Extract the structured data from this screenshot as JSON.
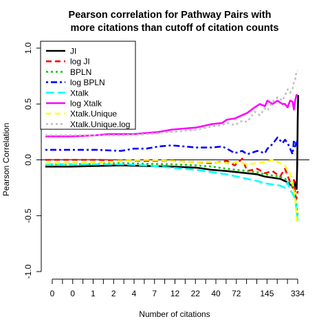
{
  "chart_data": {
    "type": "line",
    "title": [
      "Pearson correlation for Pathway Pairs with",
      "more citations than cutoff of citation counts"
    ],
    "xlabel": "Number of citations",
    "ylabel": "Pearson Correlation",
    "ylim": [
      -1.0,
      1.0
    ],
    "y_ticks": [
      -1.0,
      -0.5,
      0.0,
      0.5,
      1.0
    ],
    "y_tick_labels": [
      "-1.0",
      "-0.5",
      "0.0",
      "0.5",
      "1.0"
    ],
    "x_tick_count": 25,
    "x_tick_labels": [
      {
        "index": 0,
        "label": "0"
      },
      {
        "index": 2,
        "label": "0"
      },
      {
        "index": 4,
        "label": "1"
      },
      {
        "index": 6,
        "label": "2"
      },
      {
        "index": 8,
        "label": "4"
      },
      {
        "index": 10,
        "label": "7"
      },
      {
        "index": 12,
        "label": "12"
      },
      {
        "index": 14,
        "label": "22"
      },
      {
        "index": 16,
        "label": "40"
      },
      {
        "index": 18,
        "label": "72"
      },
      {
        "index": 21,
        "label": "145"
      },
      {
        "index": 24,
        "label": "334"
      }
    ],
    "reference_line_y": 0,
    "legend_position": "top-left",
    "series": [
      {
        "name": "JI",
        "color": "#000000",
        "dash": "solid",
        "width": 2.6,
        "points": [
          [
            0,
            -0.06
          ],
          [
            10,
            -0.06
          ],
          [
            20,
            -0.055
          ],
          [
            30,
            -0.05
          ],
          [
            40,
            -0.055
          ],
          [
            50,
            -0.06
          ],
          [
            60,
            -0.07
          ],
          [
            66,
            -0.09
          ],
          [
            72,
            -0.1
          ],
          [
            76,
            -0.11
          ],
          [
            80,
            -0.12
          ],
          [
            84,
            -0.13
          ],
          [
            87,
            -0.15
          ],
          [
            90,
            -0.16
          ],
          [
            93,
            -0.17
          ],
          [
            95,
            -0.19
          ],
          [
            96,
            -0.2
          ],
          [
            97,
            -0.22
          ],
          [
            98,
            -0.24
          ],
          [
            98.5,
            -0.18
          ],
          [
            99,
            -0.24
          ],
          [
            99.3,
            -0.2
          ],
          [
            99.6,
            -0.26
          ],
          [
            99.8,
            -0.05
          ],
          [
            100,
            0.35
          ],
          [
            100.2,
            0.58
          ]
        ]
      },
      {
        "name": "log JI",
        "color": "#ff0000",
        "dash": "dashed",
        "width": 2.6,
        "points": [
          [
            0,
            0.0
          ],
          [
            10,
            0.0
          ],
          [
            20,
            0.0
          ],
          [
            30,
            -0.005
          ],
          [
            40,
            -0.01
          ],
          [
            50,
            -0.01
          ],
          [
            60,
            -0.02
          ],
          [
            66,
            -0.03
          ],
          [
            72,
            -0.01
          ],
          [
            75,
            -0.05
          ],
          [
            78,
            0.01
          ],
          [
            80,
            -0.1
          ],
          [
            84,
            -0.08
          ],
          [
            87,
            -0.12
          ],
          [
            90,
            -0.1
          ],
          [
            93,
            -0.15
          ],
          [
            95,
            -0.08
          ],
          [
            96,
            -0.14
          ],
          [
            97,
            -0.2
          ],
          [
            98,
            -0.25
          ],
          [
            98.5,
            -0.18
          ],
          [
            99,
            -0.3
          ],
          [
            99.5,
            -0.35
          ],
          [
            100,
            -0.28
          ]
        ]
      },
      {
        "name": "BPLN",
        "color": "#00cc00",
        "dash": "dotted",
        "width": 2.6,
        "points": [
          [
            0,
            -0.04
          ],
          [
            10,
            -0.04
          ],
          [
            20,
            -0.035
          ],
          [
            30,
            -0.03
          ],
          [
            40,
            -0.035
          ],
          [
            50,
            -0.04
          ],
          [
            60,
            -0.05
          ],
          [
            66,
            -0.06
          ],
          [
            72,
            -0.08
          ],
          [
            76,
            -0.09
          ],
          [
            80,
            -0.1
          ],
          [
            84,
            -0.11
          ],
          [
            87,
            -0.13
          ],
          [
            90,
            -0.14
          ],
          [
            93,
            -0.15
          ],
          [
            95,
            -0.17
          ],
          [
            97,
            -0.2
          ],
          [
            98,
            -0.24
          ],
          [
            99,
            -0.3
          ],
          [
            99.5,
            -0.4
          ],
          [
            100,
            -0.5
          ]
        ]
      },
      {
        "name": "log BPLN",
        "color": "#0000ff",
        "dash": "dotdash",
        "width": 2.6,
        "points": [
          [
            0,
            0.09
          ],
          [
            10,
            0.09
          ],
          [
            20,
            0.09
          ],
          [
            30,
            0.08
          ],
          [
            35,
            0.1
          ],
          [
            40,
            0.1
          ],
          [
            45,
            0.12
          ],
          [
            50,
            0.13
          ],
          [
            55,
            0.12
          ],
          [
            60,
            0.11
          ],
          [
            66,
            0.11
          ],
          [
            70,
            0.12
          ],
          [
            72,
            0.1
          ],
          [
            75,
            0.06
          ],
          [
            78,
            0.08
          ],
          [
            80,
            0.05
          ],
          [
            84,
            0.08
          ],
          [
            87,
            0.06
          ],
          [
            88,
            0.1
          ],
          [
            90,
            0.14
          ],
          [
            92,
            0.2
          ],
          [
            94,
            0.15
          ],
          [
            95,
            0.18
          ],
          [
            96,
            0.15
          ],
          [
            97,
            0.1
          ],
          [
            98,
            0.05
          ],
          [
            98.5,
            0.18
          ],
          [
            99,
            0.12
          ],
          [
            99.5,
            0.15
          ],
          [
            100,
            0.18
          ]
        ]
      },
      {
        "name": "Xtalk",
        "color": "#00ffff",
        "dash": "longdash",
        "width": 2.6,
        "points": [
          [
            0,
            -0.04
          ],
          [
            10,
            -0.04
          ],
          [
            20,
            -0.04
          ],
          [
            30,
            -0.04
          ],
          [
            40,
            -0.05
          ],
          [
            50,
            -0.07
          ],
          [
            60,
            -0.09
          ],
          [
            66,
            -0.11
          ],
          [
            72,
            -0.13
          ],
          [
            76,
            -0.15
          ],
          [
            80,
            -0.17
          ],
          [
            84,
            -0.19
          ],
          [
            87,
            -0.21
          ],
          [
            90,
            -0.22
          ],
          [
            93,
            -0.23
          ],
          [
            95,
            -0.25
          ],
          [
            96,
            -0.2
          ],
          [
            97,
            -0.27
          ],
          [
            98,
            -0.3
          ],
          [
            99,
            -0.35
          ],
          [
            99.5,
            -0.45
          ],
          [
            100,
            -0.55
          ]
        ]
      },
      {
        "name": "log Xtalk",
        "color": "#ff00ff",
        "dash": "solid",
        "width": 2.6,
        "points": [
          [
            0,
            0.21
          ],
          [
            10,
            0.21
          ],
          [
            20,
            0.22
          ],
          [
            25,
            0.23
          ],
          [
            30,
            0.23
          ],
          [
            35,
            0.23
          ],
          [
            40,
            0.24
          ],
          [
            45,
            0.25
          ],
          [
            50,
            0.27
          ],
          [
            55,
            0.28
          ],
          [
            60,
            0.29
          ],
          [
            66,
            0.32
          ],
          [
            70,
            0.33
          ],
          [
            72,
            0.36
          ],
          [
            75,
            0.37
          ],
          [
            78,
            0.4
          ],
          [
            80,
            0.42
          ],
          [
            83,
            0.47
          ],
          [
            85,
            0.5
          ],
          [
            87,
            0.48
          ],
          [
            88,
            0.53
          ],
          [
            90,
            0.5
          ],
          [
            92,
            0.53
          ],
          [
            94,
            0.5
          ],
          [
            95,
            0.5
          ],
          [
            96,
            0.47
          ],
          [
            97,
            0.53
          ],
          [
            98,
            0.52
          ],
          [
            98.5,
            0.45
          ],
          [
            99,
            0.53
          ],
          [
            99.5,
            0.58
          ],
          [
            100,
            0.58
          ]
        ]
      },
      {
        "name": "Xtalk.Unique",
        "color": "#ffff00",
        "dash": "dashed",
        "width": 2.6,
        "points": [
          [
            0,
            -0.03
          ],
          [
            10,
            -0.03
          ],
          [
            20,
            -0.025
          ],
          [
            30,
            -0.01
          ],
          [
            40,
            0.0
          ],
          [
            50,
            -0.01
          ],
          [
            60,
            -0.02
          ],
          [
            66,
            -0.02
          ],
          [
            72,
            -0.03
          ],
          [
            76,
            -0.02
          ],
          [
            80,
            -0.04
          ],
          [
            84,
            -0.03
          ],
          [
            87,
            -0.02
          ],
          [
            90,
            0.0
          ],
          [
            93,
            -0.03
          ],
          [
            95,
            -0.05
          ],
          [
            96,
            -0.1
          ],
          [
            97,
            -0.12
          ],
          [
            98,
            -0.2
          ],
          [
            99,
            -0.35
          ],
          [
            99.5,
            -0.5
          ],
          [
            100,
            -0.58
          ]
        ]
      },
      {
        "name": "Xtalk.Unique.log",
        "color": "#bebebe",
        "dash": "dotted",
        "width": 2.6,
        "points": [
          [
            0,
            0.22
          ],
          [
            10,
            0.22
          ],
          [
            20,
            0.22
          ],
          [
            30,
            0.22
          ],
          [
            40,
            0.23
          ],
          [
            50,
            0.25
          ],
          [
            55,
            0.26
          ],
          [
            60,
            0.27
          ],
          [
            66,
            0.3
          ],
          [
            70,
            0.31
          ],
          [
            72,
            0.33
          ],
          [
            75,
            0.31
          ],
          [
            78,
            0.35
          ],
          [
            80,
            0.34
          ],
          [
            83,
            0.43
          ],
          [
            85,
            0.4
          ],
          [
            87,
            0.46
          ],
          [
            88,
            0.44
          ],
          [
            90,
            0.52
          ],
          [
            92,
            0.56
          ],
          [
            94,
            0.53
          ],
          [
            95,
            0.58
          ],
          [
            96,
            0.63
          ],
          [
            97,
            0.6
          ],
          [
            98,
            0.64
          ],
          [
            98.5,
            0.7
          ],
          [
            99,
            0.72
          ],
          [
            99.5,
            0.79
          ],
          [
            100,
            0.8
          ]
        ]
      }
    ]
  }
}
